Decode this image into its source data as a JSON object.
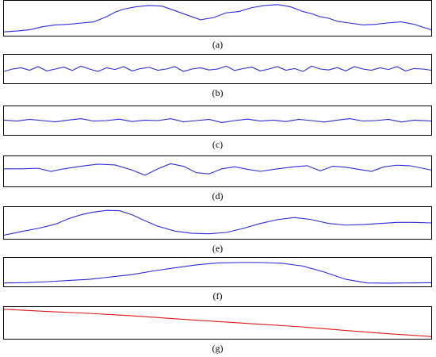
{
  "colors": {
    "signal": "#2b2bd9",
    "trend": "#e01818",
    "frame": "#000000"
  },
  "chart_data": [
    {
      "type": "line",
      "label": "(a)",
      "color": "#2b2bd9",
      "x": [
        0,
        3,
        6,
        9,
        12,
        15,
        18,
        21,
        24,
        26,
        28,
        31,
        34,
        37,
        40,
        43,
        46,
        49,
        52,
        55,
        58,
        61,
        64,
        67,
        70,
        72,
        74,
        76,
        78,
        81,
        84,
        87,
        90,
        93,
        96,
        100
      ],
      "y": [
        0.05,
        0.08,
        0.12,
        0.22,
        0.28,
        0.3,
        0.34,
        0.38,
        0.55,
        0.7,
        0.8,
        0.88,
        0.92,
        0.9,
        0.75,
        0.6,
        0.45,
        0.52,
        0.68,
        0.72,
        0.85,
        0.92,
        0.95,
        0.88,
        0.72,
        0.65,
        0.55,
        0.5,
        0.4,
        0.34,
        0.28,
        0.3,
        0.35,
        0.38,
        0.3,
        0.12
      ],
      "ylim": [
        0,
        1
      ]
    },
    {
      "type": "line",
      "label": "(b)",
      "color": "#2b2bd9",
      "x": [
        0,
        2,
        4,
        6,
        8,
        10,
        12,
        14,
        16,
        18,
        20,
        22,
        24,
        26,
        28,
        30,
        32,
        34,
        36,
        38,
        40,
        42,
        44,
        46,
        48,
        50,
        52,
        54,
        56,
        58,
        60,
        62,
        64,
        66,
        68,
        70,
        72,
        74,
        76,
        78,
        80,
        82,
        84,
        86,
        88,
        90,
        92,
        94,
        96,
        98,
        100
      ],
      "y": [
        0.4,
        0.5,
        0.55,
        0.45,
        0.6,
        0.42,
        0.5,
        0.58,
        0.44,
        0.62,
        0.5,
        0.4,
        0.55,
        0.48,
        0.6,
        0.42,
        0.52,
        0.57,
        0.45,
        0.5,
        0.6,
        0.4,
        0.5,
        0.55,
        0.46,
        0.5,
        0.62,
        0.44,
        0.52,
        0.58,
        0.42,
        0.5,
        0.6,
        0.45,
        0.52,
        0.4,
        0.62,
        0.5,
        0.46,
        0.56,
        0.42,
        0.6,
        0.5,
        0.45,
        0.55,
        0.48,
        0.6,
        0.42,
        0.52,
        0.5,
        0.45
      ],
      "ylim": [
        0,
        1
      ]
    },
    {
      "type": "line",
      "label": "(c)",
      "color": "#2b2bd9",
      "x": [
        0,
        3,
        6,
        9,
        12,
        15,
        18,
        21,
        24,
        27,
        30,
        33,
        36,
        39,
        42,
        45,
        48,
        51,
        54,
        57,
        60,
        63,
        66,
        69,
        72,
        75,
        78,
        81,
        84,
        87,
        90,
        93,
        96,
        100
      ],
      "y": [
        0.52,
        0.48,
        0.55,
        0.5,
        0.45,
        0.52,
        0.58,
        0.48,
        0.5,
        0.56,
        0.46,
        0.52,
        0.5,
        0.58,
        0.45,
        0.5,
        0.55,
        0.42,
        0.5,
        0.56,
        0.48,
        0.52,
        0.46,
        0.55,
        0.5,
        0.44,
        0.52,
        0.58,
        0.48,
        0.5,
        0.55,
        0.44,
        0.52,
        0.48
      ],
      "ylim": [
        0,
        1
      ]
    },
    {
      "type": "line",
      "label": "(d)",
      "color": "#2b2bd9",
      "x": [
        0,
        4,
        8,
        11,
        14,
        18,
        22,
        26,
        30,
        33,
        36,
        39,
        42,
        45,
        48,
        51,
        54,
        57,
        60,
        64,
        68,
        71,
        74,
        77,
        80,
        83,
        86,
        89,
        92,
        95,
        98,
        100
      ],
      "y": [
        0.6,
        0.6,
        0.62,
        0.5,
        0.6,
        0.7,
        0.78,
        0.75,
        0.55,
        0.35,
        0.6,
        0.8,
        0.7,
        0.45,
        0.4,
        0.6,
        0.68,
        0.58,
        0.5,
        0.6,
        0.68,
        0.72,
        0.52,
        0.7,
        0.66,
        0.58,
        0.5,
        0.68,
        0.74,
        0.72,
        0.62,
        0.55
      ],
      "ylim": [
        0,
        1
      ]
    },
    {
      "type": "line",
      "label": "(e)",
      "color": "#2b2bd9",
      "x": [
        0,
        4,
        8,
        12,
        15,
        18,
        21,
        24,
        27,
        30,
        33,
        36,
        40,
        44,
        48,
        52,
        56,
        60,
        64,
        68,
        72,
        76,
        80,
        84,
        88,
        92,
        96,
        100
      ],
      "y": [
        0.05,
        0.18,
        0.3,
        0.45,
        0.65,
        0.8,
        0.9,
        0.96,
        0.95,
        0.8,
        0.58,
        0.38,
        0.2,
        0.12,
        0.1,
        0.15,
        0.3,
        0.48,
        0.62,
        0.7,
        0.62,
        0.48,
        0.42,
        0.44,
        0.48,
        0.52,
        0.52,
        0.5
      ],
      "ylim": [
        0,
        1
      ]
    },
    {
      "type": "line",
      "label": "(f)",
      "color": "#2b2bd9",
      "x": [
        0,
        5,
        10,
        15,
        20,
        25,
        30,
        35,
        40,
        45,
        50,
        55,
        60,
        65,
        70,
        75,
        80,
        85,
        90,
        95,
        100
      ],
      "y": [
        0.05,
        0.06,
        0.1,
        0.15,
        0.2,
        0.3,
        0.4,
        0.55,
        0.68,
        0.8,
        0.88,
        0.9,
        0.9,
        0.87,
        0.75,
        0.5,
        0.2,
        0.05,
        0.04,
        0.05,
        0.06
      ],
      "ylim": [
        0,
        1
      ]
    },
    {
      "type": "line",
      "label": "(g)",
      "color": "#e01818",
      "x": [
        0,
        10,
        20,
        30,
        40,
        50,
        60,
        70,
        80,
        90,
        100
      ],
      "y": [
        1.0,
        0.92,
        0.85,
        0.76,
        0.65,
        0.55,
        0.45,
        0.35,
        0.22,
        0.1,
        0.0
      ],
      "ylim": [
        0,
        1
      ]
    }
  ]
}
